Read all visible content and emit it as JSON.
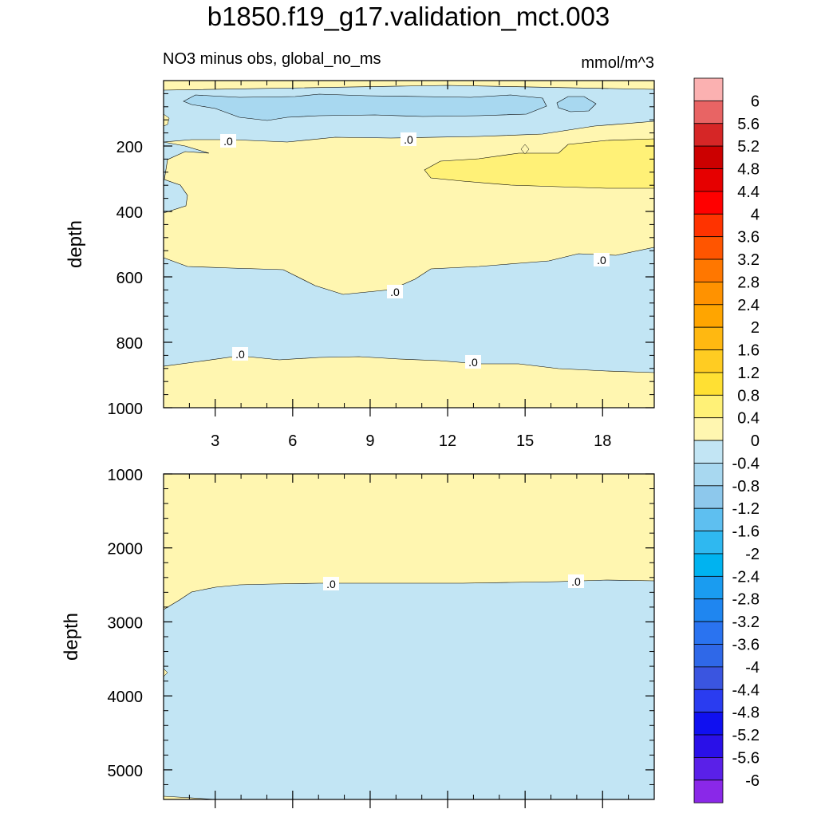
{
  "title": "b1850.f19_g17.validation_mct.003",
  "subtitle_left": "NO3 minus obs, global_no_ms",
  "units": "mmol/m^3",
  "chart_data": [
    {
      "type": "contour",
      "panel": "upper",
      "xlabel": "",
      "ylabel": "depth",
      "xlim": [
        1,
        20
      ],
      "ylim": [
        1000,
        0
      ],
      "x_ticks": [
        3,
        6,
        9,
        12,
        15,
        18
      ],
      "x_tick_labels": [
        "3",
        "6",
        "9",
        "12",
        "15",
        "18"
      ],
      "y_ticks": [
        200,
        400,
        600,
        800,
        1000
      ],
      "y_tick_labels": [
        "200",
        "400",
        "600",
        "800",
        "1000"
      ],
      "contour_labels": [
        {
          "text": ".0",
          "x": 3.5,
          "y": 185
        },
        {
          "text": ".0",
          "x": 10.5,
          "y": 182
        },
        {
          "text": ".0",
          "x": 17.6,
          "y": 545
        },
        {
          "text": ".0",
          "x": 10.5,
          "y": 645
        },
        {
          "text": ".0",
          "x": 4.0,
          "y": 840
        },
        {
          "text": ".0",
          "x": 13.4,
          "y": 865
        }
      ],
      "regions": [
        {
          "range": "0 to 0.4",
          "description": "surface layer, 200–560 m layer, below ~870 m"
        },
        {
          "range": "-0.4 to 0",
          "description": "~30–190 m band and ~560–870 m band"
        },
        {
          "range": "-0.8 to -0.4",
          "description": "~50–130 m core"
        },
        {
          "range": "0.4 to 0.8",
          "description": "x 11.7–20, ~180–320 m"
        }
      ]
    },
    {
      "type": "contour",
      "panel": "lower",
      "xlabel": "",
      "ylabel": "depth",
      "xlim": [
        1,
        20
      ],
      "ylim": [
        5400,
        1000
      ],
      "x_ticks": [
        3,
        6,
        9,
        12,
        15,
        18
      ],
      "y_ticks": [
        1000,
        2000,
        3000,
        4000,
        5000
      ],
      "y_tick_labels": [
        "1000",
        "2000",
        "3000",
        "4000",
        "5000"
      ],
      "contour_labels": [
        {
          "text": ".0",
          "x": 7.6,
          "y": 2480
        },
        {
          "text": ".0",
          "x": 17.1,
          "y": 2465
        }
      ],
      "regions": [
        {
          "range": "0 to 0.4",
          "description": "1000 m to ~2480 m"
        },
        {
          "range": "-0.4 to 0",
          "description": "~2480 m to bottom"
        }
      ]
    }
  ],
  "colorbar": {
    "labels": [
      "6",
      "5.6",
      "5.2",
      "4.8",
      "4.4",
      "4",
      "3.6",
      "3.2",
      "2.8",
      "2.4",
      "2",
      "1.6",
      "1.2",
      "0.8",
      "0.4",
      "0",
      "-0.4",
      "-0.8",
      "-1.2",
      "-1.6",
      "-2",
      "-2.4",
      "-2.8",
      "-3.2",
      "-3.6",
      "-4",
      "-4.4",
      "-4.8",
      "-5.2",
      "-5.6",
      "-6"
    ],
    "colors": [
      "#fbb1b1",
      "#e86464",
      "#d62626",
      "#cc0000",
      "#e60000",
      "#ff0000",
      "#ff3300",
      "#ff5500",
      "#ff7700",
      "#ff9200",
      "#ffa500",
      "#ffb811",
      "#ffcc22",
      "#ffe033",
      "#fff177",
      "#fff6b0",
      "#c2e5f4",
      "#a8d8f0",
      "#8dc8ec",
      "#5ebff0",
      "#2fb8f0",
      "#00b3f0",
      "#1a9cf0",
      "#1f86f0",
      "#2a73f0",
      "#2f68e8",
      "#3a55e0",
      "#2a3cf0",
      "#1010f0",
      "#2a10e8",
      "#5a20e8",
      "#8a28e8"
    ]
  }
}
